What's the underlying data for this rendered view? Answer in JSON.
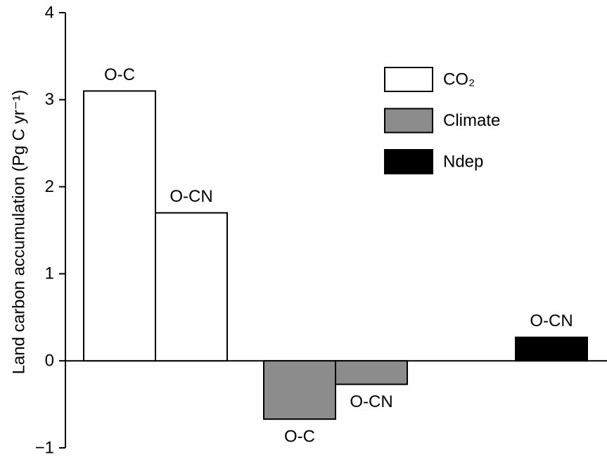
{
  "chart_data": {
    "type": "bar",
    "ylabel": "Land carbon accumulation (Pg C yr⁻¹)",
    "ylim": [
      -1,
      4
    ],
    "yticks": [
      {
        "value": -1,
        "label": "−1"
      },
      0,
      1,
      2,
      3,
      4
    ],
    "legend": "upper right",
    "series": [
      {
        "name": "CO₂",
        "color": "#ffffff",
        "values": [
          3.1,
          1.7
        ],
        "labels": [
          "O-C",
          "O-CN"
        ]
      },
      {
        "name": "Climate",
        "color": "#8c8c8c",
        "values": [
          -0.67,
          -0.27
        ],
        "labels": [
          "O-C",
          "O-CN"
        ]
      },
      {
        "name": "Ndep",
        "color": "#000000",
        "values": [
          null,
          0.27
        ],
        "labels": [
          null,
          "O-CN"
        ]
      }
    ]
  }
}
